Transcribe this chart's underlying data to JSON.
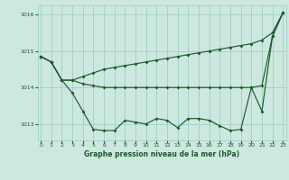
{
  "background_color": "#cce8e0",
  "grid_color": "#99ccbb",
  "line_color": "#1a5c2a",
  "title": "Graphe pression niveau de la mer (hPa)",
  "xlim": [
    -0.3,
    23.3
  ],
  "ylim": [
    1012.55,
    1016.25
  ],
  "yticks": [
    1013,
    1014,
    1015,
    1016
  ],
  "xticks": [
    0,
    1,
    2,
    3,
    4,
    5,
    6,
    7,
    8,
    9,
    10,
    11,
    12,
    13,
    14,
    15,
    16,
    17,
    18,
    19,
    20,
    21,
    22,
    23
  ],
  "line_up": [
    1014.85,
    1014.7,
    1014.2,
    1014.2,
    1014.3,
    1014.4,
    1014.5,
    1014.55,
    1014.6,
    1014.65,
    1014.7,
    1014.75,
    1014.8,
    1014.85,
    1014.9,
    1014.95,
    1015.0,
    1015.05,
    1015.1,
    1015.15,
    1015.2,
    1015.3,
    1015.5,
    1016.05
  ],
  "line_flat": [
    1014.85,
    1014.7,
    1014.2,
    1014.2,
    1014.1,
    1014.05,
    1014.0,
    1014.0,
    1014.0,
    1014.0,
    1014.0,
    1014.0,
    1014.0,
    1014.0,
    1014.0,
    1014.0,
    1014.0,
    1014.0,
    1014.0,
    1014.0,
    1014.0,
    1014.05,
    1015.4,
    1016.05
  ],
  "line_low": [
    1014.85,
    1014.7,
    1014.2,
    1013.85,
    1013.35,
    1012.85,
    1012.82,
    1012.82,
    1013.1,
    1013.05,
    1013.0,
    1013.15,
    1013.1,
    1012.9,
    1013.15,
    1013.15,
    1013.1,
    1012.95,
    1012.82,
    1012.85,
    1014.0,
    1013.35,
    1015.4,
    1016.05
  ]
}
